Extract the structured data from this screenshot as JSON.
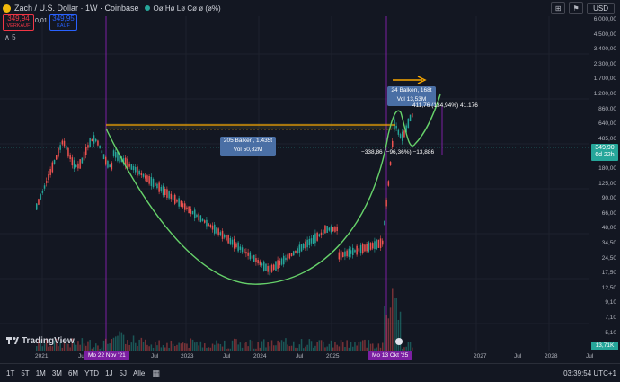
{
  "header": {
    "symbol": "Zach / U.S. Dollar · 1W · Coinbase",
    "ohlc": "Oø Hø Lø Cø ø (ø%)",
    "currency": "USD"
  },
  "trade": {
    "sell_price": "349,94",
    "sell_label": "VERKAUF",
    "spread": "0,01",
    "buy_price": "349,95",
    "buy_label": "KAUF",
    "collapse": "∧ 5"
  },
  "price_axis": [
    "6.000,00",
    "4.500,00",
    "3.400,00",
    "2.300,00",
    "1.700,00",
    "1.200,00",
    "860,00",
    "640,00",
    "485,00",
    "245,00",
    "180,00",
    "125,00",
    "90,00",
    "66,00",
    "48,00",
    "34,50",
    "24,50",
    "17,50",
    "12,50",
    "9,10",
    "7,10",
    "5,10",
    "3,65"
  ],
  "last_price": {
    "price": "349,90",
    "countdown": "6d 22h"
  },
  "volume_tag": "13,71K",
  "time_axis": [
    "2021",
    "Jul",
    "Jul",
    "2023",
    "Jul",
    "2024",
    "Jul",
    "2025",
    "Jul",
    "2027",
    "Jul",
    "2028",
    "Jul"
  ],
  "date_tags": {
    "left": "Mo 22 Nov '21",
    "right": "Mo 13 Okt '25"
  },
  "measure_1": {
    "bars": "205 Balken, 1.435t",
    "vol": "Vol 50,82M",
    "change": "−338,86 (−96,36%) −13,886"
  },
  "measure_2": {
    "bars": "24 Balken, 168t",
    "vol": "Vol 13,53M",
    "change": "411,76 (134,94%) 41.176"
  },
  "brand": "TradingView",
  "timeframes": [
    "1T",
    "5T",
    "1M",
    "3M",
    "6M",
    "YTD",
    "1J",
    "5J",
    "Alle"
  ],
  "clock": "03:39:54 UTC+1",
  "colors": {
    "bg": "#131722",
    "up": "#26a69a",
    "down": "#ef5350",
    "cup": "#4caf50",
    "level": "#f7a600",
    "vline": "#7b1fa2"
  },
  "chart_data": {
    "type": "candlestick",
    "log_scale": true,
    "ylim": [
      3.65,
      6000
    ],
    "annotations": [
      "cup-and-handle curve",
      "horizontal level",
      "vertical lines at Mo 22 Nov '21 and Mo 13 Okt '25"
    ]
  }
}
